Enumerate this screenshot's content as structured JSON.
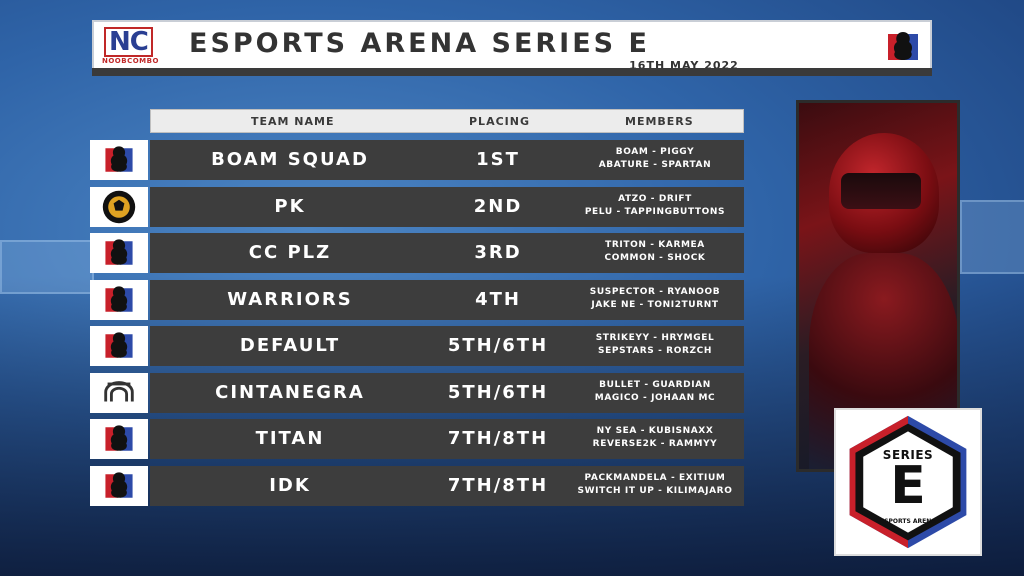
{
  "header": {
    "logo_text": "NC",
    "logo_subtext": "NOOBCOMBO",
    "title": "ESPORTS ARENA SERIES E",
    "date": "16TH MAY 2022"
  },
  "table": {
    "columns": [
      "TEAM NAME",
      "PLACING",
      "MEMBERS"
    ],
    "rows": [
      {
        "team": "BOAM SQUAD",
        "placing": "1ST",
        "members_line1": "BOAM - PIGGY",
        "members_line2": "ABATURE - SPARTAN",
        "logo": "eag-logo"
      },
      {
        "team": "PK",
        "placing": "2ND",
        "members_line1": "ATZO - DRIFT",
        "members_line2": "PELU - TAPPINGBUTTONS",
        "logo": "pk-logo"
      },
      {
        "team": "CC PLZ",
        "placing": "3RD",
        "members_line1": "TRITON - KARMEA",
        "members_line2": "COMMON - SHOCK",
        "logo": "eag-logo"
      },
      {
        "team": "WARRIORS",
        "placing": "4TH",
        "members_line1": "SUSPECTOR - RYANOOB",
        "members_line2": "JAKE NE - TONI2TURNT",
        "logo": "eag-logo"
      },
      {
        "team": "DEFAULT",
        "placing": "5TH/6TH",
        "members_line1": "STRIKEYY - HRYMGEL",
        "members_line2": "SEPSTARS - RORZCH",
        "logo": "eag-logo"
      },
      {
        "team": "CINTANEGRA",
        "placing": "5TH/6TH",
        "members_line1": "BULLET - GUARDIAN",
        "members_line2": "MAGICO - JOHAAN MC",
        "logo": "cintanegra-logo"
      },
      {
        "team": "TITAN",
        "placing": "7TH/8TH",
        "members_line1": "NY SEA - KUBISNAXX",
        "members_line2": "REVERSE2K - RAMMYY",
        "logo": "eag-logo"
      },
      {
        "team": "IDK",
        "placing": "7TH/8TH",
        "members_line1": "PACKMANDELA - EXITIUM",
        "members_line2": "SWITCH IT UP - KILIMAJARO",
        "logo": "eag-logo"
      }
    ]
  },
  "series_card": {
    "line1": "SERIES",
    "letter": "E",
    "footer": "ESPORTS ARENA"
  },
  "colors": {
    "row_bg": "#3d3d3d",
    "red": "#c8202a",
    "blue": "#2d4aa8",
    "bg_blue": "#2f64a8"
  }
}
